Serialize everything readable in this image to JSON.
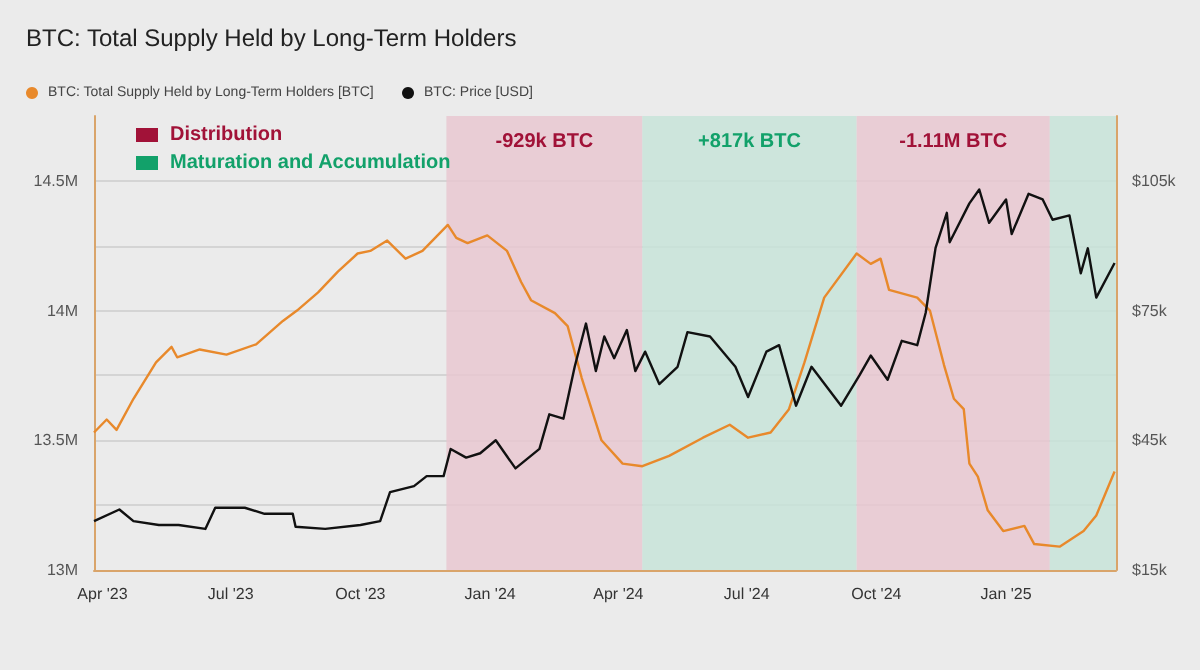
{
  "chart_data": {
    "type": "line",
    "title": "BTC: Total Supply Held by Long-Term Holders",
    "legend": "top left",
    "grid": "y",
    "marker": "none",
    "line_style": "solid",
    "xlim": [
      "2023-03-26",
      "2025-03-20"
    ],
    "xticks": [
      {
        "value": "2023-04-01",
        "label": "Apr '23"
      },
      {
        "value": "2023-07-01",
        "label": "Jul '23"
      },
      {
        "value": "2023-10-01",
        "label": "Oct '23"
      },
      {
        "value": "2024-01-01",
        "label": "Jan '24"
      },
      {
        "value": "2024-04-01",
        "label": "Apr '24"
      },
      {
        "value": "2024-07-01",
        "label": "Jul '24"
      },
      {
        "value": "2024-10-01",
        "label": "Oct '24"
      },
      {
        "value": "2025-01-01",
        "label": "Jan '25"
      }
    ],
    "ylim": [
      13,
      14.75
    ],
    "yticks": [
      {
        "value": 13,
        "label": "13M"
      },
      {
        "value": 13.25,
        "label": null
      },
      {
        "value": 13.5,
        "label": "13.5M"
      },
      {
        "value": 13.75,
        "label": null
      },
      {
        "value": 14,
        "label": "14M"
      },
      {
        "value": 14.25,
        "label": null
      },
      {
        "value": 14.5,
        "label": "14.5M"
      }
    ],
    "y2lim": [
      15,
      120
    ],
    "y2ticks": [
      {
        "value": 15,
        "label": "$15k"
      },
      {
        "value": 45,
        "label": "$45k"
      },
      {
        "value": 75,
        "label": "$75k"
      },
      {
        "value": 105,
        "label": "$105k"
      }
    ],
    "bands": [
      {
        "axis": "x",
        "from": "2023-12-01",
        "to": "2024-04-18",
        "label": "-929k BTC",
        "color": "#e8c6cf"
      },
      {
        "axis": "x",
        "from": "2024-04-18",
        "to": "2024-09-17",
        "label": "+817k BTC",
        "color": "#c6e3d8"
      },
      {
        "axis": "x",
        "from": "2024-09-17",
        "to": "2025-02-01",
        "label": "-1.11M BTC",
        "color": "#e8c6cf"
      },
      {
        "axis": "x",
        "from": "2025-02-01",
        "to": "2025-03-20",
        "label": null,
        "color": "#c6e3d8"
      }
    ],
    "annotations": [
      "Distribution",
      "Maturation and Accumulation"
    ],
    "series": [
      {
        "name": "BTC: Total Supply Held by Long-Term Holders [BTC]",
        "color": "#e8892b",
        "x": [
          "2023-03-26",
          "2023-04-04",
          "2023-04-11",
          "2023-04-23",
          "2023-05-09",
          "2023-05-20",
          "2023-05-24",
          "2023-06-09",
          "2023-06-28",
          "2023-07-19",
          "2023-08-07",
          "2023-08-17",
          "2023-09-01",
          "2023-09-15",
          "2023-09-29",
          "2023-10-08",
          "2023-10-20",
          "2023-11-02",
          "2023-11-14",
          "2023-12-02",
          "2023-12-08",
          "2023-12-16",
          "2023-12-30",
          "2024-01-13",
          "2024-01-23",
          "2024-01-30",
          "2024-02-16",
          "2024-02-25",
          "2024-03-06",
          "2024-03-20",
          "2024-04-04",
          "2024-04-18",
          "2024-05-07",
          "2024-05-31",
          "2024-06-19",
          "2024-07-02",
          "2024-07-18",
          "2024-07-31",
          "2024-08-11",
          "2024-08-25",
          "2024-09-17",
          "2024-09-27",
          "2024-10-04",
          "2024-10-10",
          "2024-10-30",
          "2024-11-08",
          "2024-11-18",
          "2024-11-25",
          "2024-12-02",
          "2024-12-06",
          "2024-12-12",
          "2024-12-19",
          "2024-12-30",
          "2025-01-14",
          "2025-01-21",
          "2025-02-08",
          "2025-02-25",
          "2025-03-06",
          "2025-03-19"
        ],
        "values": [
          13.53,
          13.58,
          13.54,
          13.66,
          13.8,
          13.86,
          13.82,
          13.85,
          13.83,
          13.87,
          13.96,
          14.0,
          14.07,
          14.15,
          14.22,
          14.23,
          14.27,
          14.2,
          14.23,
          14.33,
          14.28,
          14.26,
          14.29,
          14.23,
          14.11,
          14.04,
          13.99,
          13.94,
          13.74,
          13.5,
          13.41,
          13.4,
          13.44,
          13.51,
          13.56,
          13.51,
          13.53,
          13.62,
          13.8,
          14.05,
          14.22,
          14.18,
          14.2,
          14.08,
          14.05,
          14.0,
          13.79,
          13.66,
          13.62,
          13.41,
          13.36,
          13.23,
          13.15,
          13.17,
          13.1,
          13.09,
          13.15,
          13.21,
          13.38
        ]
      },
      {
        "name": "BTC: Price [USD]",
        "color": "#111111",
        "axis": "y2",
        "x": [
          "2023-03-26",
          "2023-04-13",
          "2023-04-23",
          "2023-05-11",
          "2023-05-25",
          "2023-06-13",
          "2023-06-20",
          "2023-07-11",
          "2023-07-25",
          "2023-08-14",
          "2023-08-16",
          "2023-09-06",
          "2023-10-01",
          "2023-10-15",
          "2023-10-22",
          "2023-11-08",
          "2023-11-17",
          "2023-11-29",
          "2023-12-04",
          "2023-12-15",
          "2023-12-25",
          "2024-01-05",
          "2024-01-19",
          "2024-02-05",
          "2024-02-12",
          "2024-02-22",
          "2024-03-01",
          "2024-03-09",
          "2024-03-16",
          "2024-03-22",
          "2024-03-29",
          "2024-04-07",
          "2024-04-13",
          "2024-04-20",
          "2024-04-30",
          "2024-05-13",
          "2024-05-20",
          "2024-06-05",
          "2024-06-23",
          "2024-07-02",
          "2024-07-15",
          "2024-07-24",
          "2024-08-05",
          "2024-08-16",
          "2024-09-06",
          "2024-09-19",
          "2024-09-27",
          "2024-10-09",
          "2024-10-19",
          "2024-10-30",
          "2024-11-05",
          "2024-11-12",
          "2024-11-20",
          "2024-11-22",
          "2024-12-06",
          "2024-12-13",
          "2024-12-20",
          "2025-01-01",
          "2025-01-05",
          "2025-01-17",
          "2025-01-27",
          "2025-02-03",
          "2025-02-15",
          "2025-02-23",
          "2025-02-28",
          "2025-03-06",
          "2025-03-19"
        ],
        "values": [
          26.3,
          29,
          26.3,
          25.4,
          25.4,
          24.5,
          29.4,
          29.4,
          28,
          28,
          25,
          24.5,
          25.4,
          26.3,
          33,
          34.4,
          36.7,
          36.7,
          43,
          41,
          42,
          45,
          38.5,
          43,
          51,
          50,
          62,
          72,
          61,
          69,
          64,
          70.5,
          61,
          65.5,
          58,
          62,
          70,
          69,
          62,
          55,
          65.5,
          67,
          53,
          62,
          53,
          60,
          64.6,
          59,
          68,
          67,
          74.5,
          89.5,
          97.6,
          90.8,
          99.8,
          103,
          95.3,
          100.7,
          92.7,
          102,
          100.7,
          96,
          97,
          83.6,
          89.4,
          78,
          86
        ]
      }
    ]
  }
}
